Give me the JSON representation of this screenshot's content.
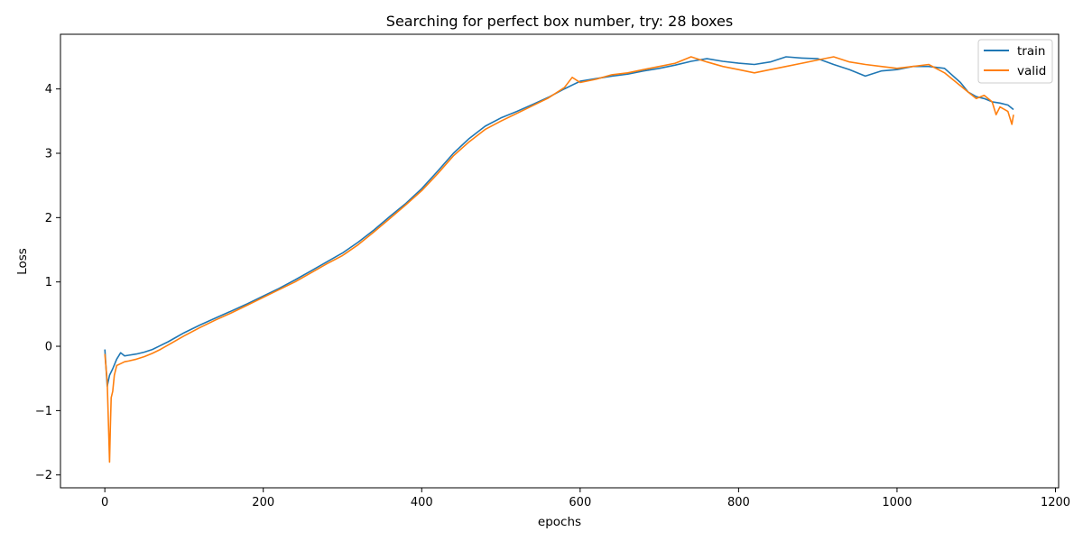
{
  "chart_data": {
    "type": "line",
    "title": "Searching for perfect box number, try: 28 boxes",
    "xlabel": "epochs",
    "ylabel": "Loss",
    "xlim": [
      -56,
      1204
    ],
    "ylim": [
      -2.2,
      4.85
    ],
    "xticks": [
      0,
      200,
      400,
      600,
      800,
      1000,
      1200
    ],
    "yticks": [
      -2,
      -1,
      0,
      1,
      2,
      3,
      4
    ],
    "xtick_labels": [
      "0",
      "200",
      "400",
      "600",
      "800",
      "1000",
      "1200"
    ],
    "ytick_labels": [
      "−2",
      "−1",
      "0",
      "1",
      "2",
      "3",
      "4"
    ],
    "grid": false,
    "legend_position": "top-right",
    "series": [
      {
        "name": "train",
        "color": "#1f77b4",
        "x": [
          0,
          3,
          6,
          10,
          15,
          20,
          25,
          30,
          40,
          50,
          60,
          70,
          80,
          90,
          100,
          120,
          140,
          160,
          180,
          200,
          220,
          240,
          260,
          280,
          300,
          320,
          340,
          360,
          380,
          400,
          420,
          440,
          460,
          480,
          500,
          520,
          540,
          560,
          580,
          600,
          620,
          640,
          660,
          680,
          700,
          720,
          740,
          760,
          780,
          800,
          820,
          840,
          860,
          880,
          900,
          920,
          940,
          960,
          980,
          1000,
          1020,
          1040,
          1060,
          1080,
          1090,
          1100,
          1110,
          1120,
          1130,
          1140,
          1147
        ],
        "y": [
          -0.05,
          -0.62,
          -0.45,
          -0.35,
          -0.2,
          -0.1,
          -0.15,
          -0.14,
          -0.12,
          -0.09,
          -0.05,
          0.01,
          0.07,
          0.14,
          0.21,
          0.33,
          0.44,
          0.55,
          0.66,
          0.78,
          0.9,
          1.03,
          1.17,
          1.31,
          1.45,
          1.62,
          1.81,
          2.02,
          2.22,
          2.45,
          2.72,
          3.0,
          3.23,
          3.42,
          3.55,
          3.65,
          3.76,
          3.87,
          4.0,
          4.12,
          4.16,
          4.2,
          4.23,
          4.28,
          4.32,
          4.37,
          4.43,
          4.47,
          4.43,
          4.4,
          4.38,
          4.42,
          4.5,
          4.48,
          4.47,
          4.38,
          4.3,
          4.2,
          4.28,
          4.3,
          4.35,
          4.35,
          4.32,
          4.1,
          3.95,
          3.88,
          3.85,
          3.8,
          3.78,
          3.75,
          3.68
        ]
      },
      {
        "name": "valid",
        "color": "#ff7f0e",
        "x": [
          0,
          3,
          6,
          7,
          8,
          10,
          12,
          15,
          20,
          25,
          30,
          40,
          50,
          60,
          70,
          80,
          90,
          100,
          120,
          140,
          160,
          180,
          200,
          220,
          240,
          260,
          280,
          300,
          320,
          340,
          360,
          380,
          400,
          420,
          440,
          460,
          480,
          500,
          520,
          540,
          560,
          580,
          590,
          600,
          620,
          640,
          660,
          680,
          700,
          720,
          740,
          760,
          780,
          800,
          820,
          840,
          860,
          880,
          900,
          920,
          940,
          960,
          980,
          1000,
          1020,
          1040,
          1060,
          1080,
          1090,
          1100,
          1110,
          1120,
          1125,
          1130,
          1140,
          1145,
          1147
        ],
        "y": [
          -0.12,
          -0.55,
          -1.8,
          -1.25,
          -0.8,
          -0.7,
          -0.45,
          -0.3,
          -0.27,
          -0.24,
          -0.23,
          -0.2,
          -0.16,
          -0.11,
          -0.05,
          0.02,
          0.09,
          0.16,
          0.29,
          0.41,
          0.52,
          0.64,
          0.76,
          0.88,
          1.0,
          1.14,
          1.28,
          1.41,
          1.58,
          1.78,
          1.99,
          2.2,
          2.42,
          2.68,
          2.96,
          3.18,
          3.37,
          3.5,
          3.62,
          3.74,
          3.86,
          4.02,
          4.18,
          4.1,
          4.15,
          4.22,
          4.25,
          4.3,
          4.35,
          4.4,
          4.5,
          4.42,
          4.35,
          4.3,
          4.25,
          4.3,
          4.35,
          4.4,
          4.45,
          4.5,
          4.42,
          4.38,
          4.35,
          4.32,
          4.35,
          4.38,
          4.25,
          4.05,
          3.95,
          3.85,
          3.9,
          3.8,
          3.6,
          3.72,
          3.65,
          3.45,
          3.6
        ]
      }
    ]
  }
}
